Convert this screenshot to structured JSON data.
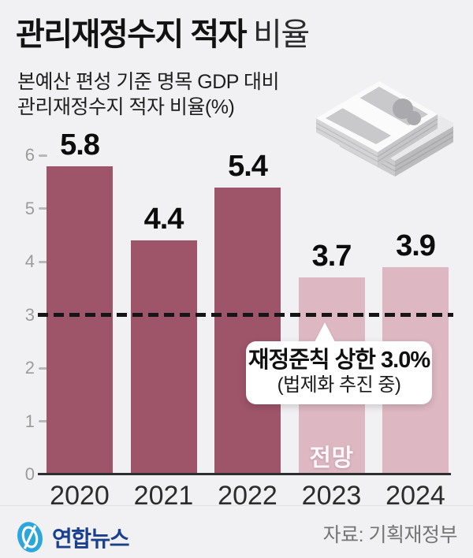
{
  "header": {
    "title_bold": "관리재정수지 적자",
    "title_regular": "비율",
    "subtitle_line1": "본예산 편성 기준 명목 GDP 대비",
    "subtitle_line2": "관리재정수지 적자 비율(%)"
  },
  "chart_data": {
    "type": "bar",
    "title": "관리재정수지 적자 비율",
    "subtitle": "본예산 편성 기준 명목 GDP 대비 관리재정수지 적자 비율(%)",
    "unit": "%",
    "categories": [
      "2020",
      "2021",
      "2022",
      "2023",
      "2024"
    ],
    "values": [
      5.8,
      4.4,
      5.4,
      3.7,
      3.9
    ],
    "forecast_flags": [
      false,
      false,
      false,
      true,
      true
    ],
    "forecast_label": "전망",
    "ylim": [
      0,
      6
    ],
    "yticks": [
      0,
      1,
      2,
      3,
      4,
      5,
      6
    ],
    "grid": false,
    "legend": "none",
    "reference_line": {
      "value": 3.0,
      "label_bold": "재정준칙 상한 3.0%",
      "label_sub": "(법제화 추진 중)"
    },
    "colors": {
      "actual_bar": "#9e5469",
      "forecast_bar": "#ddb8c3",
      "reference_line": "#161616"
    }
  },
  "icons": {
    "money_stack": "banknote-stack-icon",
    "logo": "yonhap-globe-icon"
  },
  "footer": {
    "logo_text": "연합뉴스",
    "source": "자료: 기획재정부",
    "logo_blue": "#2ba7de",
    "logo_navy": "#1a3f8e"
  }
}
